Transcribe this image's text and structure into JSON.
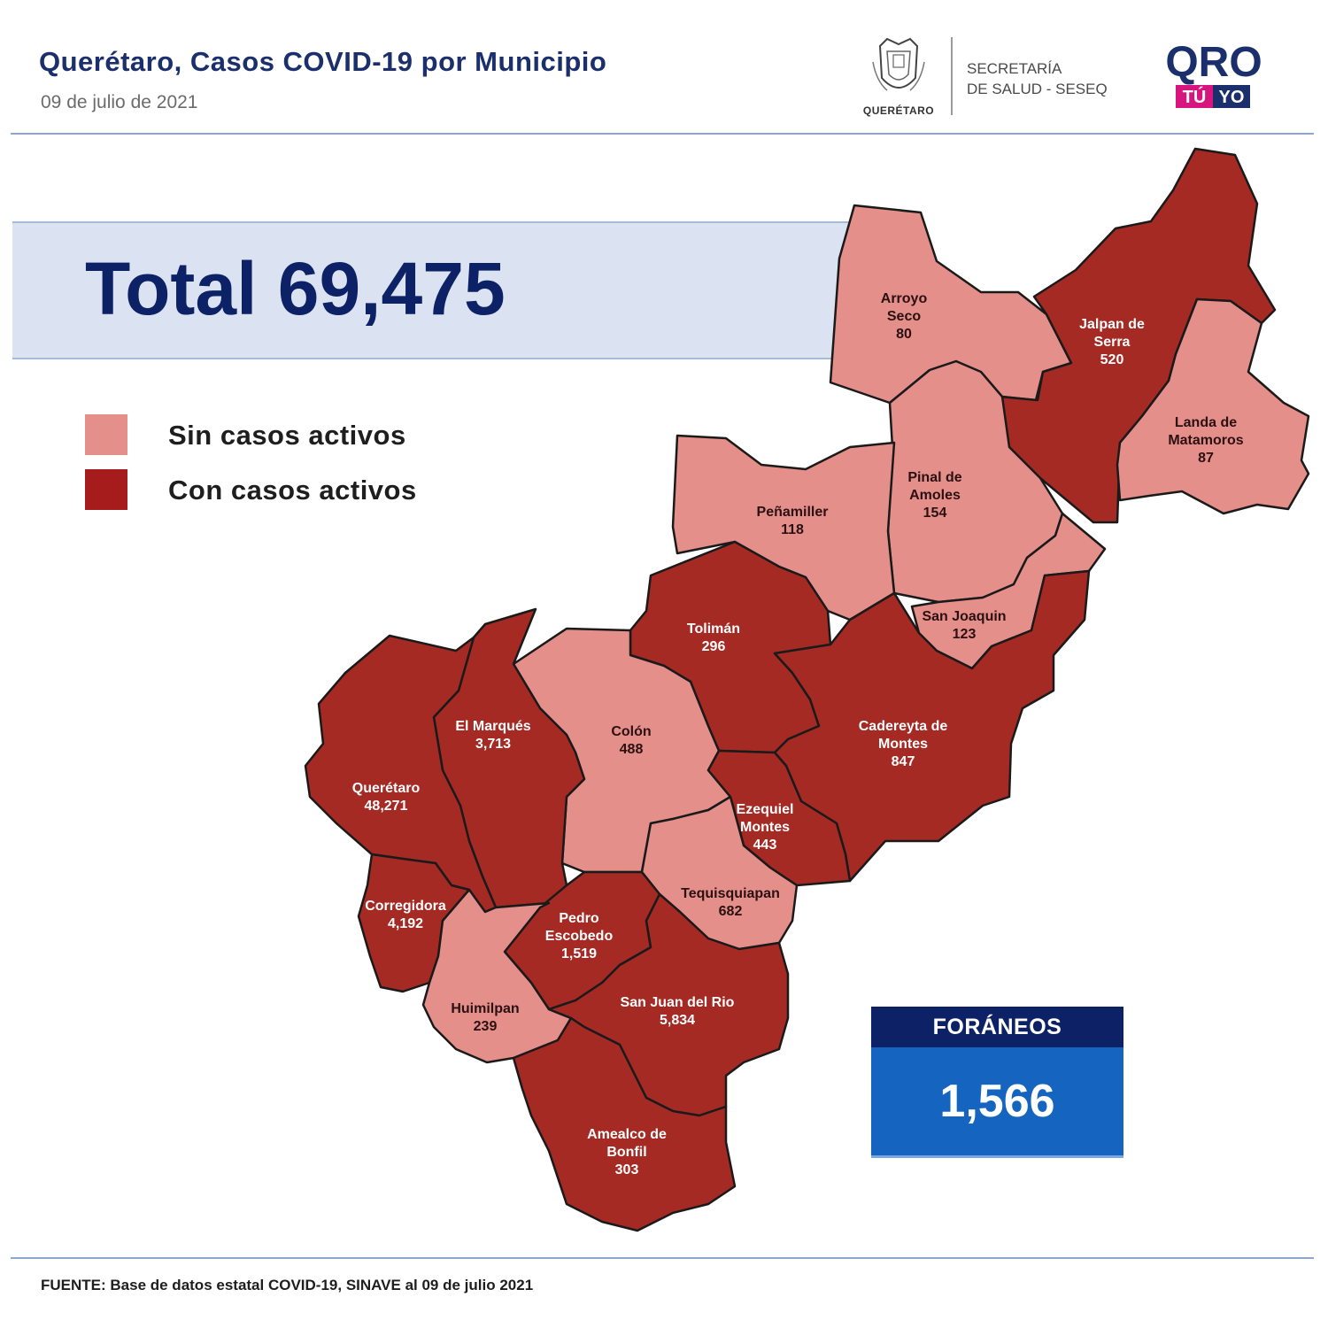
{
  "header": {
    "title": "Querétaro, Casos COVID-19 por Municipio",
    "date": "09 de julio de 2021",
    "estado_logo_text": "QUERÉTARO",
    "secretaria_line1": "SECRETARÍA",
    "secretaria_line2": "DE SALUD - SESEQ",
    "oro_logo_main": "QRO",
    "oro_logo_tu": "TÚ",
    "oro_logo_yo": "YO"
  },
  "total": {
    "text": "Total 69,475"
  },
  "legend": [
    {
      "label": "Sin casos activos",
      "color": "#e58f8b",
      "icon": "light-red-square"
    },
    {
      "label": "Con casos activos",
      "color": "#a61c1c",
      "icon": "dark-red-square"
    }
  ],
  "colors": {
    "sin_casos": "#e58f8b",
    "con_casos": "#a52a24",
    "border": "#1a1a1a"
  },
  "municipios": [
    {
      "key": "arroyo-seco",
      "name_lines": [
        "Arroyo",
        "Seco"
      ],
      "cases": "80",
      "status": "sin"
    },
    {
      "key": "jalpan-de-serra",
      "name_lines": [
        "Jalpan de",
        "Serra"
      ],
      "cases": "520",
      "status": "con"
    },
    {
      "key": "landa-de-matamoros",
      "name_lines": [
        "Landa de",
        "Matamoros"
      ],
      "cases": "87",
      "status": "sin"
    },
    {
      "key": "pinal-de-amoles",
      "name_lines": [
        "Pinal de",
        "Amoles"
      ],
      "cases": "154",
      "status": "sin"
    },
    {
      "key": "penamiller",
      "name_lines": [
        "Peñamiller"
      ],
      "cases": "118",
      "status": "sin"
    },
    {
      "key": "san-joaquin",
      "name_lines": [
        "San Joaquin"
      ],
      "cases": "123",
      "status": "sin"
    },
    {
      "key": "toliman",
      "name_lines": [
        "Tolimán"
      ],
      "cases": "296",
      "status": "con"
    },
    {
      "key": "cadereyta-de-montes",
      "name_lines": [
        "Cadereyta de",
        "Montes"
      ],
      "cases": "847",
      "status": "con"
    },
    {
      "key": "colon",
      "name_lines": [
        "Colón"
      ],
      "cases": "488",
      "status": "sin"
    },
    {
      "key": "el-marques",
      "name_lines": [
        "El  Marqués"
      ],
      "cases": "3,713",
      "status": "con"
    },
    {
      "key": "queretaro",
      "name_lines": [
        "Querétaro"
      ],
      "cases": "48,271",
      "status": "con"
    },
    {
      "key": "ezequiel-montes",
      "name_lines": [
        "Ezequiel",
        "Montes"
      ],
      "cases": "443",
      "status": "con"
    },
    {
      "key": "tequisquiapan",
      "name_lines": [
        "Tequisquiapan"
      ],
      "cases": "682",
      "status": "sin"
    },
    {
      "key": "corregidora",
      "name_lines": [
        "Corregidora"
      ],
      "cases": "4,192",
      "status": "con"
    },
    {
      "key": "pedro-escobedo",
      "name_lines": [
        "Pedro",
        "Escobedo"
      ],
      "cases": "1,519",
      "status": "con"
    },
    {
      "key": "huimilpan",
      "name_lines": [
        "Huimilpan"
      ],
      "cases": "239",
      "status": "sin"
    },
    {
      "key": "san-juan-del-rio",
      "name_lines": [
        "San Juan del Rio"
      ],
      "cases": "5,834",
      "status": "con"
    },
    {
      "key": "amealco-de-bonfil",
      "name_lines": [
        "Amealco de",
        "Bonfil"
      ],
      "cases": "303",
      "status": "con"
    }
  ],
  "foraneos": {
    "label": "FORÁNEOS",
    "value": "1,566"
  },
  "footer": {
    "source": "FUENTE:  Base de datos estatal COVID-19,  SINAVE  al 09 de julio 2021"
  }
}
